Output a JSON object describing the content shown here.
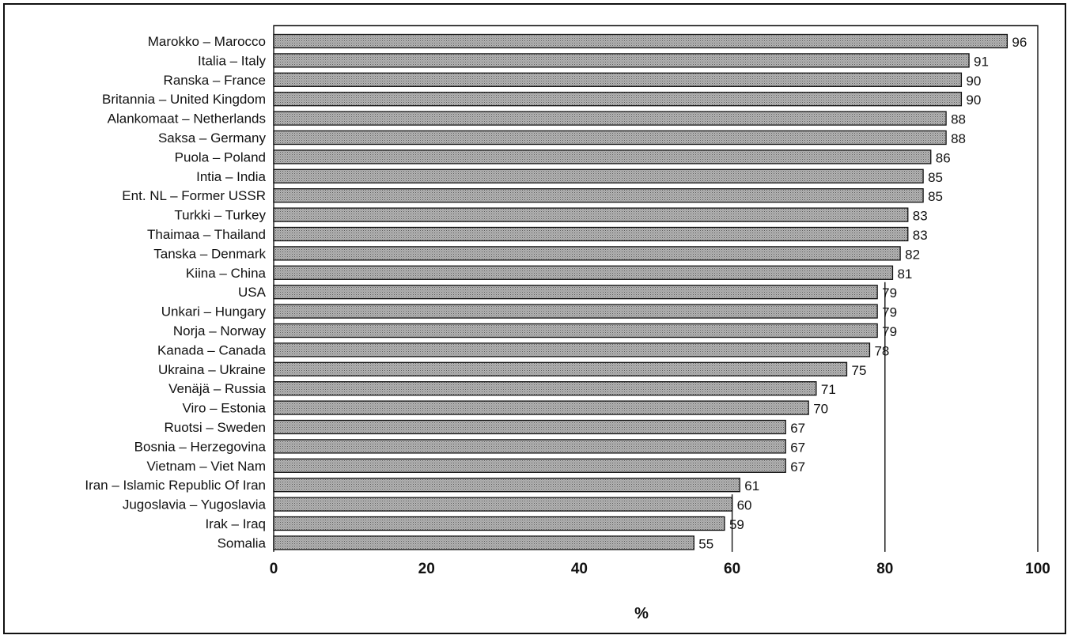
{
  "chart_data": {
    "type": "bar",
    "orientation": "horizontal",
    "categories": [
      "Marokko – Marocco",
      "Italia – Italy",
      "Ranska – France",
      "Britannia – United Kingdom",
      "Alankomaat – Netherlands",
      "Saksa – Germany",
      "Puola – Poland",
      "Intia – India",
      "Ent. NL – Former USSR",
      "Turkki – Turkey",
      "Thaimaa – Thailand",
      "Tanska – Denmark",
      "Kiina – China",
      "USA",
      "Unkari – Hungary",
      "Norja – Norway",
      "Kanada – Canada",
      "Ukraina – Ukraine",
      "Venäjä – Russia",
      "Viro – Estonia",
      "Ruotsi – Sweden",
      "Bosnia – Herzegovina",
      "Vietnam – Viet Nam",
      "Iran – Islamic Republic Of Iran",
      "Jugoslavia – Yugoslavia",
      "Irak – Iraq",
      "Somalia"
    ],
    "values": [
      96,
      91,
      90,
      90,
      88,
      88,
      86,
      85,
      85,
      83,
      83,
      82,
      81,
      79,
      79,
      79,
      78,
      75,
      71,
      70,
      67,
      67,
      67,
      61,
      60,
      59,
      55
    ],
    "value_labels": [
      "96",
      "91",
      "90",
      "90",
      "88",
      "88",
      "86",
      "85",
      "85",
      "83",
      "83",
      "82",
      "81",
      "79",
      "79",
      "79",
      "78",
      "75",
      "71",
      "70",
      "67",
      "67",
      "67",
      "61",
      "60",
      "59",
      "55"
    ],
    "xlim": [
      0,
      100
    ],
    "xticks": [
      "0",
      "20",
      "40",
      "60",
      "80",
      "100"
    ],
    "xlabel": "%",
    "reference_lines": [
      60,
      80
    ],
    "title": "",
    "bar_color": "#a6a6a6",
    "bar_edge_color": "#111111",
    "grid": false
  }
}
